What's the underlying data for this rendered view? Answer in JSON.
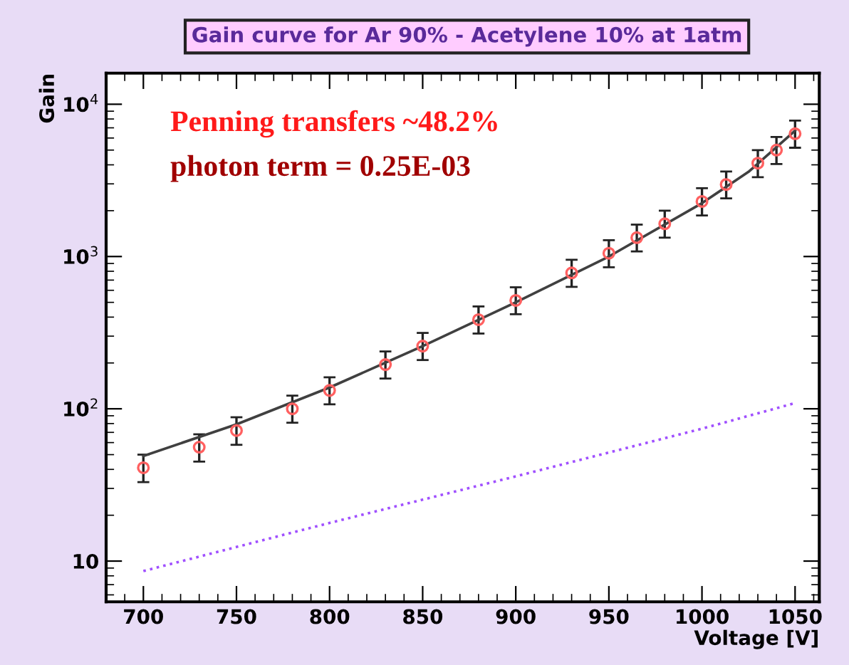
{
  "chart_data": {
    "type": "scatter",
    "title": "Gain curve for Ar 90% - Acetylene 10% at 1atm",
    "xlabel": "Voltage [V]",
    "ylabel": "Gain",
    "log": "y",
    "xlim": [
      680,
      1063
    ],
    "ylim": [
      5.4,
      16000
    ],
    "xticks": [
      700,
      750,
      800,
      850,
      900,
      950,
      1000,
      1050
    ],
    "yticks": [
      10,
      {
        "value": 100,
        "label": "10$^{2}$"
      },
      {
        "value": 1000,
        "label": "10$^{3}$"
      },
      {
        "value": 10000,
        "label": "10$^{4}$"
      }
    ],
    "grid": false,
    "legend": false,
    "annotations": [
      "Penning transfers ~48.2%",
      "photon term = 0.25E-03"
    ],
    "series": [
      {
        "type": "line",
        "color": "#404040",
        "line_style": "solid",
        "marker": "none",
        "x": [
          700,
          750,
          800,
          850,
          900,
          950,
          1000,
          1025,
          1050
        ],
        "values": [
          49,
          79,
          138,
          258,
          500,
          1000,
          2240,
          3600,
          6700
        ]
      },
      {
        "type": "line",
        "color": "#a050ff",
        "line_style": "dotted",
        "marker": "none",
        "x": [
          700,
          800,
          900,
          1000,
          1050
        ],
        "values": [
          8.6,
          17.8,
          36,
          74,
          109
        ]
      },
      {
        "color": "#ff6060",
        "marker": "circle",
        "x": [
          700,
          730,
          750,
          780,
          800,
          830,
          850,
          880,
          900,
          930,
          950,
          965,
          980,
          1000,
          1013,
          1030,
          1040,
          1050
        ],
        "values": [
          41,
          56,
          72,
          100,
          132,
          195,
          258,
          385,
          515,
          780,
          1050,
          1330,
          1640,
          2300,
          2970,
          4100,
          5000,
          6400
        ],
        "errors": [
          [
            33,
            50
          ],
          [
            45,
            68
          ],
          [
            58,
            88
          ],
          [
            81,
            122
          ],
          [
            107,
            161
          ],
          [
            158,
            238
          ],
          [
            209,
            315
          ],
          [
            312,
            470
          ],
          [
            418,
            628
          ],
          [
            632,
            952
          ],
          [
            850,
            1280
          ],
          [
            1080,
            1620
          ],
          [
            1330,
            2000
          ],
          [
            1860,
            2810
          ],
          [
            2410,
            3620
          ],
          [
            3320,
            5000
          ],
          [
            4050,
            6100
          ],
          [
            5180,
            7810
          ]
        ]
      }
    ]
  }
}
